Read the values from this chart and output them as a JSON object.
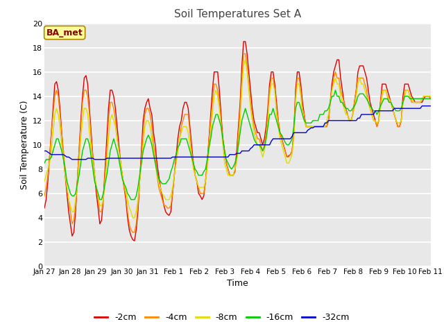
{
  "title": "Soil Temperatures Set A",
  "xlabel": "Time",
  "ylabel": "Soil Temperature (C)",
  "ylim": [
    0,
    20
  ],
  "yticks": [
    0,
    2,
    4,
    6,
    8,
    10,
    12,
    14,
    16,
    18,
    20
  ],
  "fig_bg_color": "#ffffff",
  "plot_bg_color": "#e8e8e8",
  "grid_color": "#ffffff",
  "annotation_text": "BA_met",
  "annotation_bg": "#ffff99",
  "annotation_border": "#aa8800",
  "colors": {
    "-2cm": "#dd0000",
    "-4cm": "#ff8800",
    "-8cm": "#dddd00",
    "-16cm": "#00cc00",
    "-32cm": "#0000cc"
  },
  "x_labels": [
    "Jan 27",
    "Jan 28",
    "Jan 29",
    "Jan 30",
    "Jan 31",
    "Feb 1",
    "Feb 2",
    "Feb 3",
    "Feb 4",
    "Feb 5",
    "Feb 6",
    "Feb 7",
    "Feb 8",
    "Feb 9",
    "Feb 10",
    "Feb 11"
  ],
  "x_ticks": [
    0,
    24,
    48,
    72,
    96,
    120,
    144,
    168,
    192,
    216,
    240,
    264,
    288,
    312,
    336,
    360
  ],
  "series": {
    "-2cm": [
      4.8,
      5.5,
      7.0,
      9.0,
      11.0,
      13.0,
      15.0,
      15.2,
      14.5,
      13.0,
      11.0,
      9.0,
      7.5,
      6.0,
      4.5,
      3.5,
      2.5,
      2.8,
      4.5,
      7.0,
      9.5,
      12.0,
      14.0,
      15.5,
      15.7,
      15.0,
      13.0,
      11.0,
      9.0,
      7.5,
      6.0,
      4.8,
      3.5,
      3.8,
      5.5,
      8.0,
      10.5,
      13.0,
      14.5,
      14.5,
      14.0,
      13.0,
      11.5,
      10.0,
      8.5,
      7.5,
      6.5,
      5.5,
      4.0,
      3.0,
      2.5,
      2.2,
      2.1,
      3.0,
      4.5,
      7.0,
      9.5,
      12.0,
      13.0,
      13.5,
      13.8,
      13.0,
      12.5,
      11.0,
      10.0,
      8.5,
      7.5,
      6.5,
      5.8,
      5.0,
      4.5,
      4.3,
      4.2,
      4.5,
      6.0,
      7.5,
      9.0,
      10.5,
      11.5,
      12.0,
      13.0,
      13.5,
      13.5,
      13.0,
      11.5,
      10.0,
      8.5,
      7.5,
      7.0,
      6.0,
      5.8,
      5.5,
      5.8,
      7.0,
      8.5,
      10.5,
      12.5,
      14.5,
      16.0,
      16.0,
      16.0,
      14.5,
      12.5,
      10.5,
      9.5,
      8.5,
      8.0,
      7.5,
      7.5,
      7.5,
      7.8,
      9.5,
      11.5,
      13.5,
      16.5,
      18.5,
      18.5,
      17.5,
      16.0,
      14.5,
      13.0,
      12.0,
      11.5,
      11.0,
      11.0,
      10.5,
      10.0,
      10.5,
      11.5,
      13.0,
      15.0,
      16.0,
      16.0,
      15.0,
      13.5,
      12.0,
      11.0,
      10.5,
      10.0,
      9.5,
      9.0,
      9.1,
      9.2,
      9.5,
      11.0,
      14.5,
      16.0,
      16.0,
      15.0,
      13.5,
      12.5,
      11.5,
      11.5,
      11.5,
      11.5,
      11.5,
      11.5,
      11.5,
      11.5,
      11.5,
      11.5,
      11.5,
      11.5,
      11.5,
      12.0,
      13.5,
      15.0,
      16.0,
      16.5,
      17.0,
      17.0,
      15.5,
      14.5,
      13.5,
      13.0,
      12.5,
      12.0,
      12.0,
      12.5,
      13.5,
      14.5,
      16.0,
      16.5,
      16.5,
      16.5,
      16.0,
      15.5,
      14.5,
      13.5,
      13.0,
      12.5,
      12.0,
      11.5,
      12.0,
      13.5,
      15.0,
      15.0,
      15.0,
      14.5,
      14.0,
      13.5,
      13.0,
      12.5,
      12.0,
      11.5,
      11.5,
      12.0,
      14.0,
      15.0,
      15.0,
      15.0,
      14.5,
      14.0,
      13.8,
      13.5,
      13.5,
      13.5,
      13.5,
      13.5,
      13.8,
      14.0,
      14.0,
      14.0,
      13.8
    ],
    "-4cm": [
      5.8,
      6.5,
      7.5,
      9.0,
      11.0,
      12.5,
      14.0,
      14.5,
      14.0,
      12.5,
      11.0,
      9.5,
      8.0,
      6.5,
      5.5,
      4.5,
      3.5,
      3.8,
      5.0,
      7.0,
      9.5,
      11.5,
      13.5,
      14.5,
      14.5,
      14.0,
      12.5,
      10.5,
      9.0,
      7.5,
      6.5,
      5.5,
      4.5,
      4.5,
      5.5,
      7.5,
      9.5,
      12.0,
      13.5,
      13.5,
      13.0,
      12.0,
      10.5,
      9.5,
      8.5,
      7.5,
      6.5,
      5.8,
      4.5,
      3.5,
      3.0,
      2.8,
      2.8,
      3.5,
      5.0,
      7.0,
      9.0,
      11.0,
      12.5,
      13.0,
      13.0,
      12.5,
      11.5,
      10.0,
      9.0,
      7.5,
      6.5,
      6.0,
      5.5,
      5.0,
      5.0,
      4.8,
      4.8,
      5.0,
      6.0,
      7.5,
      8.5,
      9.5,
      10.5,
      11.5,
      12.0,
      12.5,
      12.5,
      12.5,
      11.0,
      9.5,
      8.5,
      7.5,
      7.0,
      6.5,
      6.0,
      6.0,
      6.0,
      7.0,
      8.5,
      10.5,
      12.0,
      13.5,
      15.0,
      15.0,
      14.5,
      13.5,
      12.0,
      10.5,
      9.5,
      8.5,
      8.0,
      7.5,
      7.5,
      7.5,
      8.0,
      9.0,
      11.0,
      13.0,
      15.5,
      17.5,
      17.5,
      16.5,
      15.0,
      13.5,
      12.5,
      11.5,
      11.0,
      10.5,
      10.5,
      10.0,
      9.5,
      10.0,
      11.0,
      12.5,
      14.5,
      15.5,
      15.5,
      14.5,
      13.0,
      12.0,
      11.0,
      10.5,
      10.0,
      9.5,
      9.0,
      9.0,
      9.2,
      9.5,
      11.0,
      14.0,
      15.5,
      15.5,
      14.5,
      13.0,
      12.5,
      11.5,
      11.5,
      11.5,
      11.5,
      11.5,
      11.5,
      11.5,
      11.5,
      11.5,
      11.5,
      11.5,
      11.5,
      11.5,
      12.0,
      13.5,
      14.5,
      15.5,
      16.0,
      15.5,
      15.5,
      14.5,
      14.0,
      13.5,
      13.0,
      12.5,
      12.0,
      12.0,
      12.5,
      13.5,
      14.5,
      15.5,
      15.5,
      15.5,
      15.5,
      15.0,
      14.5,
      13.5,
      13.0,
      12.5,
      12.0,
      12.0,
      11.5,
      12.0,
      13.5,
      14.5,
      14.5,
      14.5,
      14.0,
      13.5,
      13.5,
      13.0,
      12.5,
      12.0,
      11.5,
      11.5,
      12.0,
      13.5,
      14.5,
      14.5,
      14.5,
      14.0,
      13.5,
      13.5,
      13.5,
      13.5,
      13.5,
      13.5,
      13.8,
      14.0,
      14.0,
      14.0,
      14.0,
      13.8
    ],
    "-8cm": [
      7.0,
      7.5,
      8.0,
      8.5,
      9.5,
      11.0,
      12.5,
      13.0,
      12.5,
      11.5,
      10.0,
      9.0,
      7.5,
      6.5,
      5.5,
      5.0,
      4.5,
      4.5,
      5.5,
      6.5,
      8.5,
      10.5,
      12.0,
      13.0,
      13.0,
      12.5,
      11.0,
      9.5,
      8.5,
      7.5,
      6.5,
      5.8,
      5.0,
      5.0,
      5.5,
      7.0,
      8.5,
      10.5,
      12.0,
      12.5,
      12.0,
      11.5,
      10.5,
      9.5,
      8.5,
      7.5,
      6.8,
      6.2,
      5.5,
      4.8,
      4.5,
      4.0,
      4.0,
      4.5,
      5.5,
      7.0,
      8.5,
      10.0,
      11.5,
      12.0,
      12.0,
      11.5,
      10.5,
      9.5,
      8.5,
      7.5,
      7.0,
      6.5,
      6.0,
      5.8,
      5.5,
      5.5,
      5.5,
      5.8,
      6.5,
      7.5,
      8.5,
      9.5,
      10.5,
      11.0,
      11.5,
      11.5,
      11.5,
      11.0,
      10.0,
      9.0,
      8.0,
      7.5,
      7.0,
      6.5,
      6.5,
      6.5,
      6.5,
      7.0,
      8.0,
      9.5,
      11.0,
      12.5,
      14.0,
      14.5,
      14.0,
      13.0,
      11.5,
      10.0,
      8.5,
      8.0,
      7.5,
      7.5,
      7.5,
      7.5,
      8.0,
      8.5,
      10.0,
      12.0,
      14.5,
      16.5,
      17.0,
      16.0,
      14.5,
      13.0,
      12.0,
      11.0,
      10.5,
      10.0,
      10.0,
      9.5,
      9.0,
      9.5,
      10.5,
      12.0,
      14.0,
      15.0,
      15.0,
      14.5,
      12.5,
      11.5,
      10.5,
      10.0,
      9.5,
      9.0,
      8.5,
      8.5,
      8.8,
      9.2,
      10.5,
      13.5,
      15.0,
      15.0,
      14.0,
      12.5,
      12.0,
      11.5,
      11.5,
      11.5,
      11.5,
      11.5,
      11.5,
      11.5,
      11.5,
      11.5,
      11.5,
      11.5,
      11.5,
      12.0,
      12.5,
      13.5,
      14.5,
      15.0,
      15.5,
      15.0,
      15.0,
      14.0,
      13.5,
      13.0,
      12.5,
      12.5,
      12.0,
      12.0,
      12.5,
      13.0,
      14.0,
      15.0,
      15.5,
      15.0,
      15.0,
      14.5,
      14.0,
      13.5,
      13.0,
      12.5,
      12.0,
      12.0,
      11.8,
      12.0,
      13.0,
      14.0,
      14.5,
      14.5,
      14.0,
      13.8,
      13.5,
      13.0,
      12.5,
      12.0,
      11.8,
      11.8,
      12.0,
      13.5,
      14.0,
      14.5,
      14.5,
      14.0,
      13.8,
      13.5,
      13.5,
      13.5,
      13.5,
      13.5,
      13.8,
      14.0,
      14.0,
      14.0,
      14.0,
      14.0
    ],
    "-16cm": [
      8.5,
      8.8,
      8.8,
      8.8,
      9.0,
      9.5,
      10.0,
      10.5,
      10.5,
      10.0,
      9.5,
      8.8,
      8.0,
      7.0,
      6.5,
      6.0,
      5.8,
      5.8,
      6.0,
      6.8,
      7.5,
      8.5,
      9.5,
      10.0,
      10.5,
      10.5,
      10.0,
      9.0,
      8.0,
      7.0,
      6.5,
      6.0,
      5.5,
      5.5,
      6.0,
      6.8,
      7.5,
      8.5,
      9.5,
      10.0,
      10.5,
      10.0,
      9.5,
      8.8,
      8.0,
      7.2,
      6.8,
      6.5,
      6.0,
      5.8,
      5.5,
      5.5,
      5.5,
      5.8,
      6.5,
      7.5,
      8.5,
      9.5,
      10.0,
      10.5,
      10.8,
      10.5,
      10.0,
      9.2,
      8.5,
      7.8,
      7.2,
      7.0,
      6.8,
      6.8,
      6.8,
      7.0,
      7.2,
      7.8,
      8.2,
      8.8,
      9.2,
      9.8,
      10.0,
      10.5,
      10.5,
      10.5,
      10.5,
      10.0,
      9.5,
      9.0,
      8.5,
      8.0,
      7.8,
      7.5,
      7.5,
      7.5,
      7.8,
      8.0,
      8.8,
      9.8,
      10.5,
      11.5,
      12.0,
      12.5,
      12.5,
      12.0,
      11.5,
      10.5,
      9.5,
      8.8,
      8.5,
      8.2,
      8.0,
      8.2,
      8.5,
      9.0,
      10.0,
      11.0,
      12.0,
      12.5,
      13.0,
      12.5,
      12.0,
      11.5,
      11.0,
      10.5,
      10.2,
      10.0,
      10.0,
      9.8,
      9.5,
      9.8,
      10.5,
      11.5,
      12.5,
      12.5,
      13.0,
      12.5,
      12.0,
      11.5,
      11.0,
      10.8,
      10.5,
      10.2,
      10.0,
      10.0,
      10.2,
      10.5,
      11.5,
      13.0,
      13.5,
      13.5,
      13.0,
      12.5,
      12.0,
      11.8,
      11.8,
      11.8,
      11.8,
      12.0,
      12.0,
      12.0,
      12.0,
      12.5,
      12.5,
      12.5,
      12.8,
      12.8,
      13.0,
      13.5,
      14.0,
      14.0,
      14.5,
      14.0,
      14.0,
      13.5,
      13.5,
      13.2,
      13.0,
      13.0,
      12.8,
      12.8,
      13.0,
      13.2,
      13.5,
      14.0,
      14.2,
      14.2,
      14.2,
      14.0,
      13.8,
      13.5,
      13.2,
      13.0,
      12.8,
      12.8,
      12.5,
      12.8,
      13.2,
      13.5,
      13.8,
      13.8,
      13.8,
      13.5,
      13.5,
      13.2,
      13.0,
      12.8,
      12.8,
      12.8,
      13.0,
      13.5,
      14.0,
      14.0,
      14.0,
      13.8,
      13.8,
      13.8,
      13.8,
      13.8,
      13.8,
      13.8,
      13.8,
      13.8,
      13.8,
      13.8,
      13.8,
      13.8
    ],
    "-32cm": [
      9.5,
      9.5,
      9.4,
      9.3,
      9.2,
      9.2,
      9.2,
      9.2,
      9.2,
      9.2,
      9.2,
      9.2,
      9.1,
      9.0,
      9.0,
      8.9,
      8.8,
      8.8,
      8.8,
      8.8,
      8.8,
      8.8,
      8.8,
      8.8,
      8.8,
      8.9,
      8.9,
      8.9,
      8.9,
      8.8,
      8.8,
      8.8,
      8.8,
      8.8,
      8.8,
      8.8,
      8.9,
      8.9,
      8.9,
      8.9,
      8.9,
      8.9,
      8.9,
      8.9,
      8.9,
      8.9,
      8.9,
      8.9,
      8.9,
      8.9,
      8.9,
      8.9,
      8.9,
      8.9,
      8.9,
      8.9,
      8.9,
      8.9,
      8.9,
      8.9,
      8.9,
      8.9,
      8.9,
      8.9,
      8.9,
      8.9,
      8.9,
      8.9,
      8.9,
      8.9,
      8.9,
      8.9,
      8.9,
      8.9,
      9.0,
      9.0,
      9.0,
      9.0,
      9.0,
      9.0,
      9.0,
      9.0,
      9.0,
      9.0,
      9.0,
      9.0,
      9.0,
      9.0,
      9.0,
      9.0,
      9.0,
      9.0,
      9.0,
      9.0,
      9.0,
      9.0,
      9.0,
      9.0,
      9.0,
      9.0,
      9.0,
      9.0,
      9.0,
      9.0,
      9.0,
      9.0,
      9.0,
      9.2,
      9.2,
      9.2,
      9.2,
      9.3,
      9.3,
      9.3,
      9.5,
      9.5,
      9.5,
      9.5,
      9.5,
      9.7,
      9.8,
      10.0,
      10.0,
      10.0,
      10.0,
      10.0,
      10.0,
      10.0,
      10.0,
      10.0,
      10.0,
      10.3,
      10.5,
      10.5,
      10.5,
      10.5,
      10.5,
      10.5,
      10.5,
      10.5,
      10.5,
      10.5,
      10.5,
      10.7,
      11.0,
      11.0,
      11.0,
      11.0,
      11.0,
      11.0,
      11.0,
      11.0,
      11.2,
      11.3,
      11.4,
      11.4,
      11.5,
      11.5,
      11.5,
      11.5,
      11.5,
      11.5,
      11.8,
      11.8,
      12.0,
      12.0,
      12.0,
      12.0,
      12.0,
      12.0,
      12.0,
      12.0,
      12.0,
      12.0,
      12.0,
      12.0,
      12.0,
      12.0,
      12.0,
      12.0,
      12.0,
      12.2,
      12.2,
      12.5,
      12.5,
      12.5,
      12.5,
      12.5,
      12.5,
      12.5,
      12.5,
      12.8,
      12.8,
      12.8,
      12.8,
      12.8,
      12.8,
      12.8,
      12.8,
      12.8,
      12.8,
      12.8,
      13.0,
      13.0,
      13.0,
      13.0,
      13.0,
      13.0,
      13.0,
      13.0,
      13.0,
      13.0,
      13.0,
      13.0,
      13.0,
      13.0,
      13.0,
      13.0,
      13.2,
      13.2,
      13.2,
      13.2,
      13.2,
      13.2
    ]
  }
}
